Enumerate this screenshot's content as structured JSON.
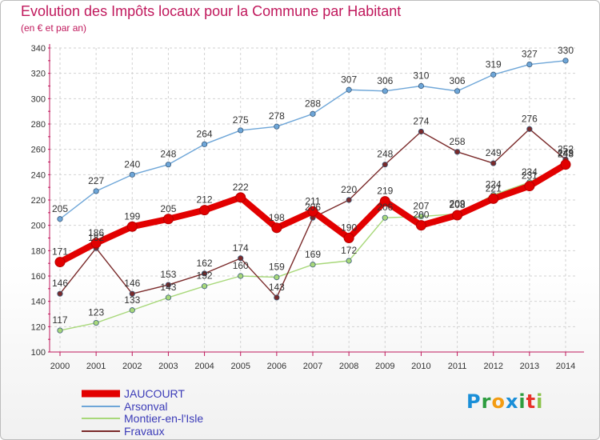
{
  "title": "Evolution des Impôts locaux pour la Commune par Habitant",
  "subtitle": "(en € et par an)",
  "logo": "Proxiti",
  "chart_data": {
    "type": "line",
    "x": [
      "2000",
      "2001",
      "2002",
      "2003",
      "2004",
      "2005",
      "2006",
      "2007",
      "2008",
      "2009",
      "2010",
      "2011",
      "2012",
      "2013",
      "2014"
    ],
    "ylim": [
      100,
      340
    ],
    "yticks": [
      100,
      120,
      140,
      160,
      180,
      200,
      220,
      240,
      260,
      280,
      300,
      320,
      340
    ],
    "grid": true,
    "legend_position": "bottom-left",
    "series": [
      {
        "name": "JAUCOURT",
        "color": "#e20000",
        "values": [
          171,
          186,
          199,
          205,
          212,
          222,
          198,
          211,
          190,
          219,
          200,
          208,
          221,
          231,
          248
        ]
      },
      {
        "name": "Arsonval",
        "color": "#6ea6d8",
        "values": [
          205,
          227,
          240,
          248,
          264,
          275,
          278,
          288,
          307,
          306,
          310,
          306,
          319,
          327,
          330
        ]
      },
      {
        "name": "Montier-en-l'Isle",
        "color": "#a8d87a",
        "values": [
          117,
          123,
          133,
          143,
          152,
          160,
          159,
          169,
          172,
          206,
          207,
          209,
          224,
          234,
          249
        ]
      },
      {
        "name": "Fravaux",
        "color": "#7a2a2a",
        "values": [
          146,
          182,
          146,
          153,
          162,
          174,
          143,
          206,
          220,
          248,
          274,
          258,
          249,
          276,
          252
        ]
      }
    ]
  }
}
